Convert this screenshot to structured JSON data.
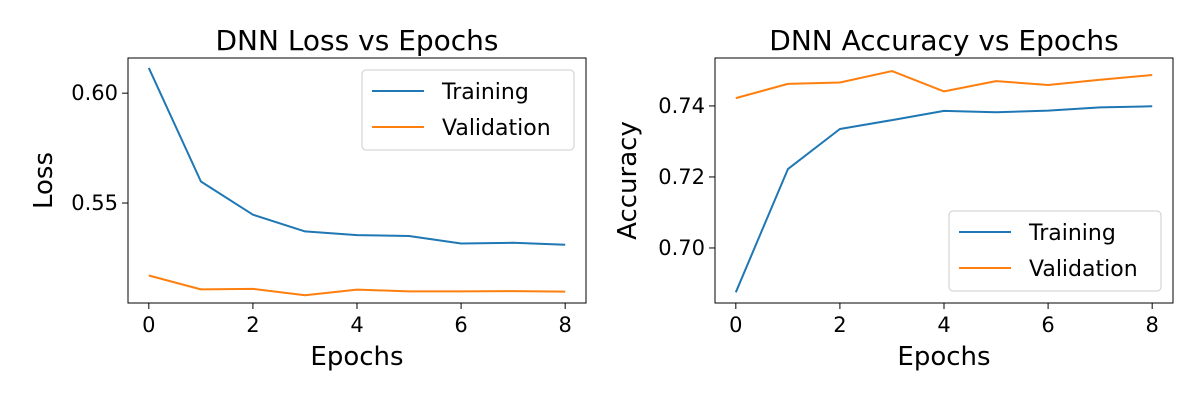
{
  "colors": {
    "training": "#1f77b4",
    "validation": "#ff7f0e"
  },
  "chart_data": [
    {
      "type": "line",
      "title": "DNN Loss vs Epochs",
      "xlabel": "Epochs",
      "ylabel": "Loss",
      "x": [
        0,
        1,
        2,
        3,
        4,
        5,
        6,
        7,
        8
      ],
      "xticks": [
        0,
        2,
        4,
        6,
        8
      ],
      "xlim": [
        -0.4,
        8.4
      ],
      "yticks": [
        0.55,
        0.6
      ],
      "ytick_labels": [
        "0.55",
        "0.60"
      ],
      "ylim": [
        0.5045,
        0.616
      ],
      "legend_position": "upper right",
      "grid": false,
      "series": [
        {
          "name": "Training",
          "values": [
            0.6115,
            0.5598,
            0.5447,
            0.5371,
            0.5354,
            0.535,
            0.5316,
            0.5319,
            0.531
          ]
        },
        {
          "name": "Validation",
          "values": [
            0.517,
            0.5107,
            0.5109,
            0.508,
            0.5106,
            0.5098,
            0.5098,
            0.5099,
            0.5097
          ]
        }
      ]
    },
    {
      "type": "line",
      "title": "DNN Accuracy vs Epochs",
      "xlabel": "Epochs",
      "ylabel": "Accuracy",
      "x": [
        0,
        1,
        2,
        3,
        4,
        5,
        6,
        7,
        8
      ],
      "xticks": [
        0,
        2,
        4,
        6,
        8
      ],
      "xlim": [
        -0.4,
        8.4
      ],
      "yticks": [
        0.7,
        0.72,
        0.74
      ],
      "ytick_labels": [
        "0.70",
        "0.72",
        "0.74"
      ],
      "ylim": [
        0.6845,
        0.7535
      ],
      "legend_position": "lower right",
      "grid": false,
      "series": [
        {
          "name": "Training",
          "values": [
            0.6875,
            0.7222,
            0.7335,
            0.736,
            0.7386,
            0.7382,
            0.7387,
            0.7396,
            0.7399
          ]
        },
        {
          "name": "Validation",
          "values": [
            0.7422,
            0.7462,
            0.7466,
            0.7498,
            0.7441,
            0.747,
            0.7459,
            0.7474,
            0.7487
          ]
        }
      ]
    }
  ]
}
